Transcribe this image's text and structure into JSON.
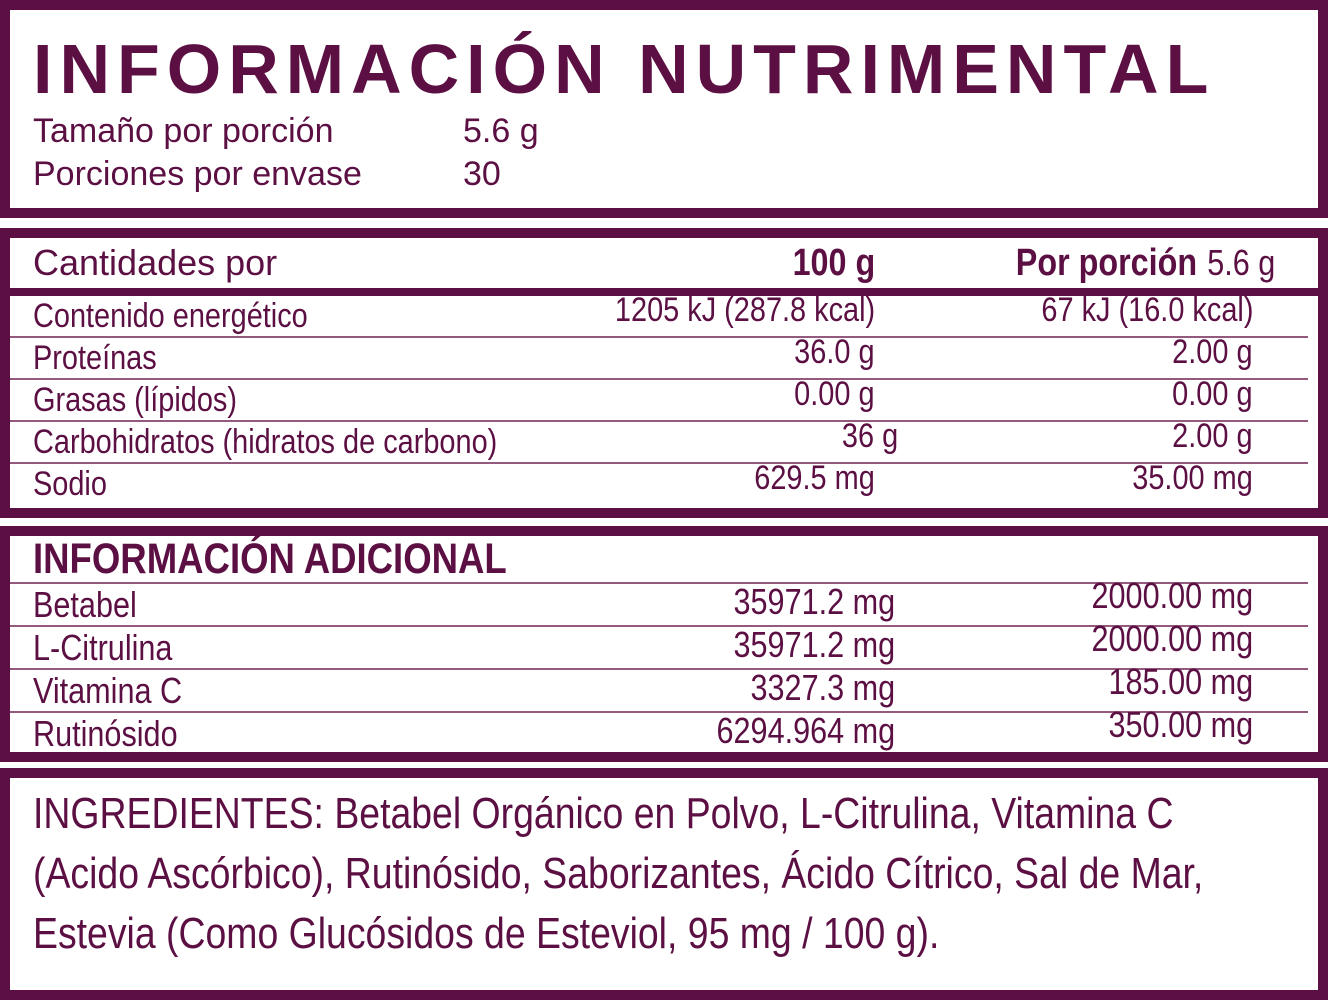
{
  "colors": {
    "primary": "#5c0f43",
    "separator_thin": "#935a7e",
    "background": "#ffffff"
  },
  "header": {
    "title": "INFORMACIÓN NUTRIMENTAL",
    "serving_size_label": "Tamaño por porción",
    "serving_size_value": "5.6 g",
    "servings_per_container_label": "Porciones por envase",
    "servings_per_container_value": "30"
  },
  "table": {
    "header": {
      "col1": "Cantidades por",
      "col2": "100 g",
      "col3_bold": "Por porción",
      "col3_value": "5.6 g"
    },
    "rows": [
      {
        "label": "Contenido energético",
        "per100": "1205 kJ (287.8 kcal)",
        "porcion": "67 kJ (16.0 kcal)"
      },
      {
        "label": "Proteínas",
        "per100": "36.0 g",
        "porcion": "2.00 g"
      },
      {
        "label": "Grasas (lípidos)",
        "per100": "0.00 g",
        "porcion": "0.00 g"
      },
      {
        "label": "Carbohidratos (hidratos de carbono)",
        "per100": "36 g",
        "porcion": "2.00 g"
      },
      {
        "label": "Sodio",
        "per100": "629.5 mg",
        "porcion": "35.00 mg"
      }
    ]
  },
  "additional": {
    "title": "INFORMACIÓN ADICIONAL",
    "rows": [
      {
        "label": "Betabel",
        "per100": "35971.2 mg",
        "porcion": "2000.00 mg"
      },
      {
        "label": "L-Citrulina",
        "per100": "35971.2 mg",
        "porcion": "2000.00 mg"
      },
      {
        "label": "Vitamina C",
        "per100": "3327.3 mg",
        "porcion": "185.00 mg"
      },
      {
        "label": "Rutinósido",
        "per100": "6294.964 mg",
        "porcion": "350.00 mg"
      }
    ]
  },
  "ingredients": {
    "lines": [
      "INGREDIENTES: Betabel Orgánico en Polvo, L-Citrulina, Vitamina C",
      "(Acido Ascórbico), Rutinósido, Saborizantes, Ácido Cítrico, Sal de Mar,",
      "Estevia (Como Glucósidos de Esteviol, 95 mg / 100 g)."
    ]
  }
}
